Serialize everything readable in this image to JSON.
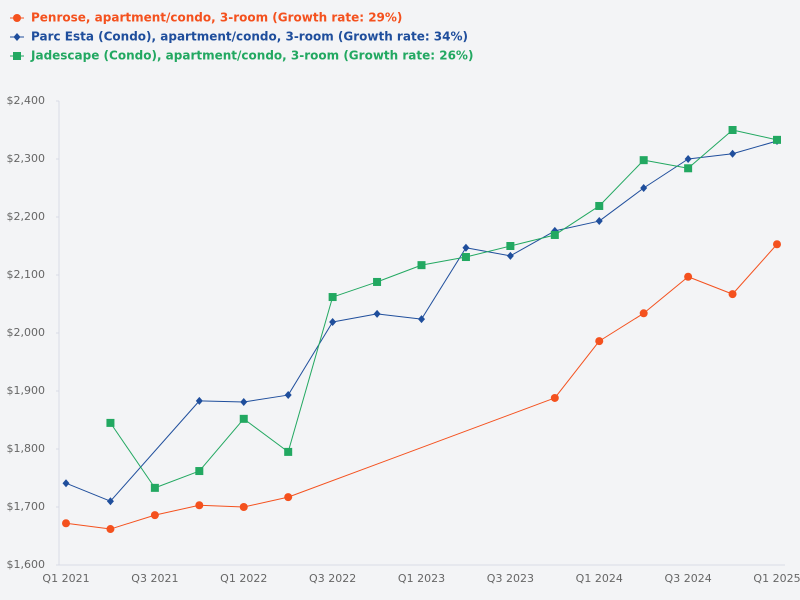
{
  "chart_data": {
    "type": "line",
    "categories": [
      "Q1 2021",
      null,
      "Q3 2021",
      null,
      "Q1 2022",
      null,
      "Q3 2022",
      null,
      "Q1 2023",
      null,
      "Q3 2023",
      null,
      "Q1 2024",
      null,
      "Q3 2024",
      null,
      "Q1 2025"
    ],
    "series": [
      {
        "name": "Penrose, apartment/condo, 3-room (Growth rate: 29%)",
        "color": "#f4511e",
        "marker": "circle",
        "values": [
          1672,
          1662,
          1686,
          1703,
          1700,
          1717,
          null,
          null,
          null,
          null,
          null,
          1888,
          1986,
          2034,
          2097,
          2067,
          2153
        ]
      },
      {
        "name": "Parc Esta (Condo), apartment/condo, 3-room (Growth rate: 34%)",
        "color": "#1f4e9c",
        "marker": "diamond",
        "values": [
          1741,
          1710,
          null,
          1883,
          1881,
          1893,
          2019,
          2033,
          2024,
          2147,
          2133,
          2176,
          2193,
          2250,
          2300,
          2309,
          2331
        ]
      },
      {
        "name": "Jadescape (Condo), apartment/condo, 3-room (Growth rate: 26%)",
        "color": "#22a861",
        "marker": "square",
        "values": [
          null,
          1845,
          1733,
          1762,
          1852,
          1795,
          2062,
          2088,
          2117,
          2131,
          2150,
          2169,
          2219,
          2298,
          2284,
          2350,
          2333
        ]
      }
    ],
    "ylim": [
      1600,
      2400
    ],
    "yticks": [
      {
        "value": 1600,
        "label": "$1,600"
      },
      {
        "value": 1700,
        "label": "$1,700"
      },
      {
        "value": 1800,
        "label": "$1,800"
      },
      {
        "value": 1900,
        "label": "$1,900"
      },
      {
        "value": 2000,
        "label": "$2,000"
      },
      {
        "value": 2100,
        "label": "$2,100"
      },
      {
        "value": 2200,
        "label": "$2,200"
      },
      {
        "value": 2300,
        "label": "$2,300"
      },
      {
        "value": 2400,
        "label": "$2,400"
      }
    ],
    "grid": false
  }
}
